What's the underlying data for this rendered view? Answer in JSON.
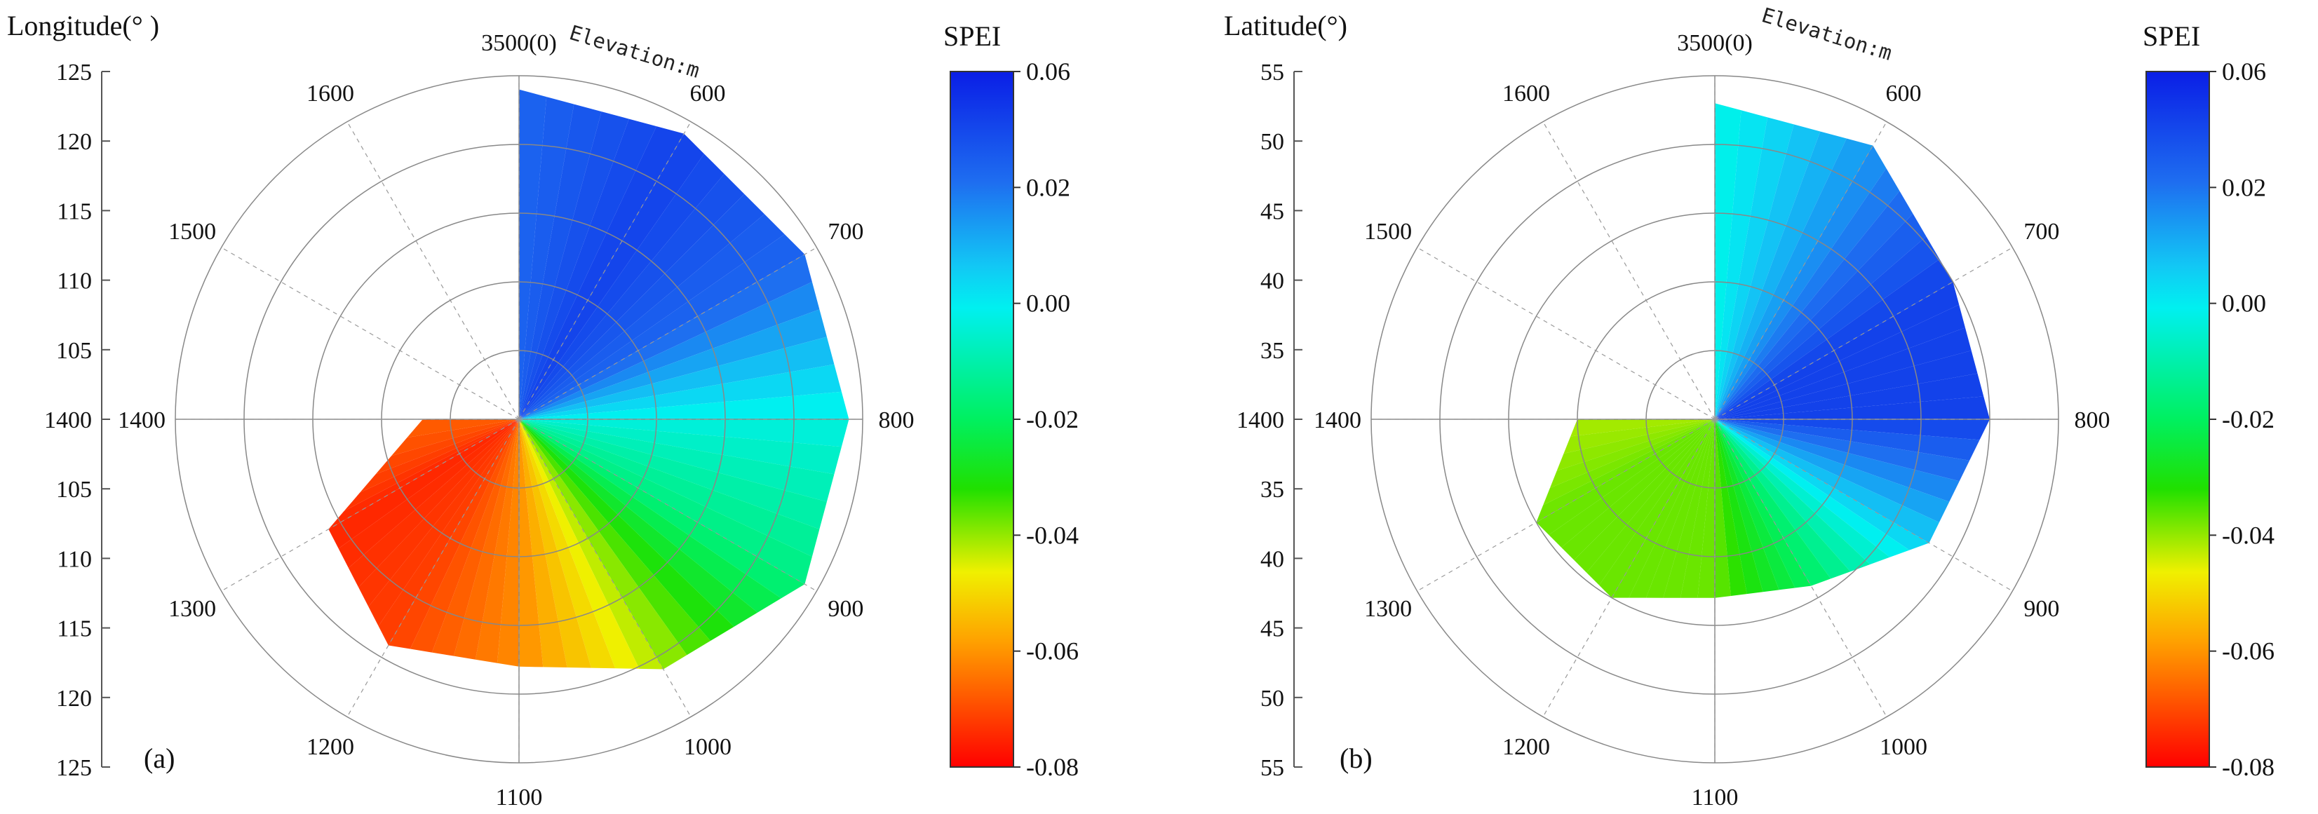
{
  "chart_data": [
    {
      "type": "polar-contour",
      "panel_label": "(a)",
      "axis_title": "Longitude(° )",
      "axis_ticks": [
        "125",
        "120",
        "115",
        "110",
        "105",
        "1400",
        "105",
        "110",
        "115",
        "120",
        "125"
      ],
      "angular_title": "Elevation:m",
      "angular_labels": [
        "3500(0)",
        "600",
        "700",
        "800",
        "900",
        "1000",
        "1100",
        "1200",
        "1300",
        "1400",
        "1500",
        "1600"
      ],
      "colorbar_title": "SPEI",
      "colorbar_ticks": [
        "0.06",
        "0.02",
        "0.00",
        "-0.02",
        "-0.04",
        "-0.06",
        "-0.08"
      ],
      "colorbar_range": [
        -0.08,
        0.06
      ],
      "field": {
        "theta_deg": [
          0,
          30,
          60,
          90,
          120,
          150,
          180,
          210,
          240,
          270
        ],
        "radius_outer": [
          124,
          124,
          124,
          124,
          124,
          121,
          118,
          119,
          116,
          107
        ],
        "spei_at_outer": [
          0.04,
          0.05,
          0.04,
          0.01,
          -0.005,
          -0.035,
          -0.058,
          -0.07,
          -0.074,
          -0.065
        ]
      }
    },
    {
      "type": "polar-contour",
      "panel_label": "(b)",
      "axis_title": "Latitude(°)",
      "axis_ticks": [
        "55",
        "50",
        "45",
        "40",
        "35",
        "1400",
        "35",
        "40",
        "45",
        "50",
        "55"
      ],
      "angular_title": "Elevation:m",
      "angular_labels": [
        "3500(0)",
        "600",
        "700",
        "800",
        "900",
        "1000",
        "1100",
        "1200",
        "1300",
        "1400",
        "1500",
        "1600"
      ],
      "colorbar_title": "SPEI",
      "colorbar_ticks": [
        "0.06",
        "0.02",
        "0.00",
        "-0.02",
        "-0.04",
        "-0.06",
        "-0.08"
      ],
      "colorbar_range": [
        -0.08,
        0.06
      ],
      "field": {
        "theta_deg": [
          0,
          30,
          60,
          90,
          120,
          150,
          180,
          210,
          240,
          270
        ],
        "radius_outer": [
          53,
          53,
          50,
          50,
          48,
          44,
          43,
          45,
          45,
          40
        ],
        "spei_at_outer": [
          0.01,
          0.03,
          0.05,
          0.05,
          0.02,
          -0.01,
          -0.03,
          -0.03,
          -0.03,
          -0.035
        ]
      }
    }
  ]
}
